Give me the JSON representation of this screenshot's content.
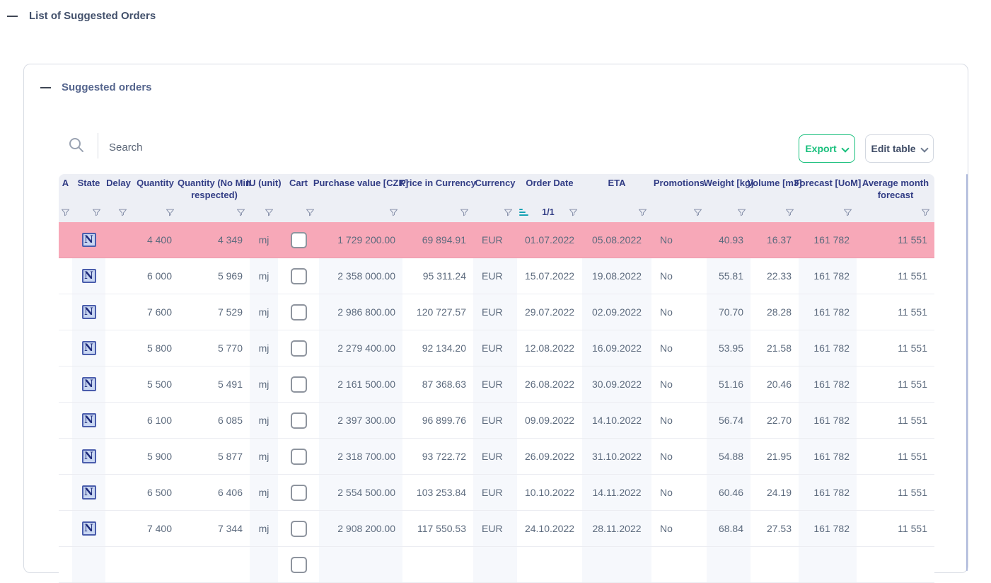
{
  "page": {
    "title": "List of Suggested Orders"
  },
  "panel": {
    "title": "Suggested orders"
  },
  "toolbar": {
    "search_placeholder": "Search",
    "export_label": "Export",
    "edit_table_label": "Edit table"
  },
  "colors": {
    "header_text": "#323d85",
    "selected_row": "#f7a8b8",
    "export_green": "#16bf7b",
    "sort_teal": "#17a2b4",
    "header_bg": "#edeff5"
  },
  "table": {
    "columns": [
      {
        "key": "a",
        "label": "A"
      },
      {
        "key": "state",
        "label": "State"
      },
      {
        "key": "delay",
        "label": "Delay"
      },
      {
        "key": "quantity",
        "label": "Quantity"
      },
      {
        "key": "quantity_no_min",
        "label": "Quantity (No Min respected)"
      },
      {
        "key": "iu_unit",
        "label": "IU (unit)"
      },
      {
        "key": "cart",
        "label": "Cart"
      },
      {
        "key": "purchase_value_czk",
        "label": "Purchase value [CZK]"
      },
      {
        "key": "price_in_currency",
        "label": "Price in Currency"
      },
      {
        "key": "currency",
        "label": "Currency"
      },
      {
        "key": "order_date",
        "label": "Order Date",
        "sorted": true,
        "page_indicator": "1/1"
      },
      {
        "key": "eta",
        "label": "ETA"
      },
      {
        "key": "promotions",
        "label": "Promotions"
      },
      {
        "key": "weight_kg",
        "label": "Weight [kg]"
      },
      {
        "key": "volume_m3",
        "label": "Volume [m3]"
      },
      {
        "key": "forecast_uom",
        "label": "Forecast [UoM]"
      },
      {
        "key": "average_month_forecast",
        "label": "Average month forecast"
      }
    ],
    "rows": [
      {
        "selected": true,
        "state": "N",
        "cart": true,
        "values": [
          "",
          "",
          "",
          "4 400",
          "4 349",
          "mj",
          "",
          "1 729 200.00",
          "69 894.91",
          "EUR",
          "01.07.2022",
          "05.08.2022",
          "No",
          "40.93",
          "16.37",
          "161 782",
          "11 551"
        ]
      },
      {
        "selected": false,
        "state": "N",
        "cart": true,
        "values": [
          "",
          "",
          "",
          "6 000",
          "5 969",
          "mj",
          "",
          "2 358 000.00",
          "95 311.24",
          "EUR",
          "15.07.2022",
          "19.08.2022",
          "No",
          "55.81",
          "22.33",
          "161 782",
          "11 551"
        ]
      },
      {
        "selected": false,
        "state": "N",
        "cart": true,
        "values": [
          "",
          "",
          "",
          "7 600",
          "7 529",
          "mj",
          "",
          "2 986 800.00",
          "120 727.57",
          "EUR",
          "29.07.2022",
          "02.09.2022",
          "No",
          "70.70",
          "28.28",
          "161 782",
          "11 551"
        ]
      },
      {
        "selected": false,
        "state": "N",
        "cart": true,
        "values": [
          "",
          "",
          "",
          "5 800",
          "5 770",
          "mj",
          "",
          "2 279 400.00",
          "92 134.20",
          "EUR",
          "12.08.2022",
          "16.09.2022",
          "No",
          "53.95",
          "21.58",
          "161 782",
          "11 551"
        ]
      },
      {
        "selected": false,
        "state": "N",
        "cart": true,
        "values": [
          "",
          "",
          "",
          "5 500",
          "5 491",
          "mj",
          "",
          "2 161 500.00",
          "87 368.63",
          "EUR",
          "26.08.2022",
          "30.09.2022",
          "No",
          "51.16",
          "20.46",
          "161 782",
          "11 551"
        ]
      },
      {
        "selected": false,
        "state": "N",
        "cart": true,
        "values": [
          "",
          "",
          "",
          "6 100",
          "6 085",
          "mj",
          "",
          "2 397 300.00",
          "96 899.76",
          "EUR",
          "09.09.2022",
          "14.10.2022",
          "No",
          "56.74",
          "22.70",
          "161 782",
          "11 551"
        ]
      },
      {
        "selected": false,
        "state": "N",
        "cart": true,
        "values": [
          "",
          "",
          "",
          "5 900",
          "5 877",
          "mj",
          "",
          "2 318 700.00",
          "93 722.72",
          "EUR",
          "26.09.2022",
          "31.10.2022",
          "No",
          "54.88",
          "21.95",
          "161 782",
          "11 551"
        ]
      },
      {
        "selected": false,
        "state": "N",
        "cart": true,
        "values": [
          "",
          "",
          "",
          "6 500",
          "6 406",
          "mj",
          "",
          "2 554 500.00",
          "103 253.84",
          "EUR",
          "10.10.2022",
          "14.11.2022",
          "No",
          "60.46",
          "24.19",
          "161 782",
          "11 551"
        ]
      },
      {
        "selected": false,
        "state": "N",
        "cart": true,
        "values": [
          "",
          "",
          "",
          "7 400",
          "7 344",
          "mj",
          "",
          "2 908 200.00",
          "117 550.53",
          "EUR",
          "24.10.2022",
          "28.11.2022",
          "No",
          "68.84",
          "27.53",
          "161 782",
          "11 551"
        ]
      },
      {
        "selected": false,
        "state": "",
        "cart": true,
        "values": [
          "",
          "",
          "",
          "",
          "",
          "",
          "",
          "",
          "",
          "",
          "",
          "",
          "",
          "",
          "",
          "",
          ""
        ]
      }
    ]
  }
}
